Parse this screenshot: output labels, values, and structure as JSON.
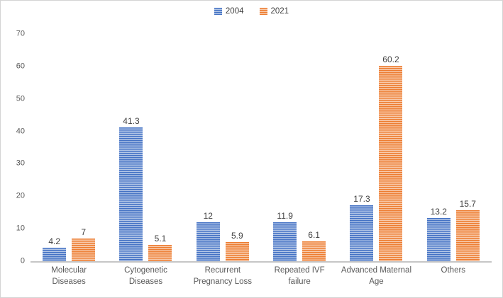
{
  "chart_data": {
    "type": "bar",
    "title": "",
    "xlabel": "",
    "ylabel": "",
    "categories": [
      "Molecular Diseases",
      "Cytogenetic Diseases",
      "Recurrent Pregnancy Loss",
      "Repeated IVF failure",
      "Advanced Maternal Age",
      "Others"
    ],
    "series": [
      {
        "name": "2004",
        "values": [
          4.2,
          41.3,
          12,
          11.9,
          17.3,
          13.2
        ],
        "labels": [
          "4.2",
          "41.3",
          "12",
          "11.9",
          "17.3",
          "13.2"
        ],
        "color_dark": "#4472C4",
        "color_light": "#B4C7E7",
        "pattern": "horizontal-stripes"
      },
      {
        "name": "2021",
        "values": [
          7,
          5.1,
          5.9,
          6.1,
          60.2,
          15.7
        ],
        "labels": [
          "7",
          "5.1",
          "5.9",
          "6.1",
          "60.2",
          "15.7"
        ],
        "color_dark": "#ED7D31",
        "color_light": "#F8CBAD",
        "pattern": "horizontal-stripes"
      }
    ],
    "ylim": [
      0,
      70
    ],
    "yticks": [
      0,
      10,
      20,
      30,
      40,
      50,
      60,
      70
    ],
    "legend_position": "top-center",
    "grid": false,
    "axis_line_color": "#C6C6C6",
    "tick_label_color": "#595959",
    "data_label_color": "#3F3F3F",
    "frame_border_color": "#D4D4D4"
  }
}
